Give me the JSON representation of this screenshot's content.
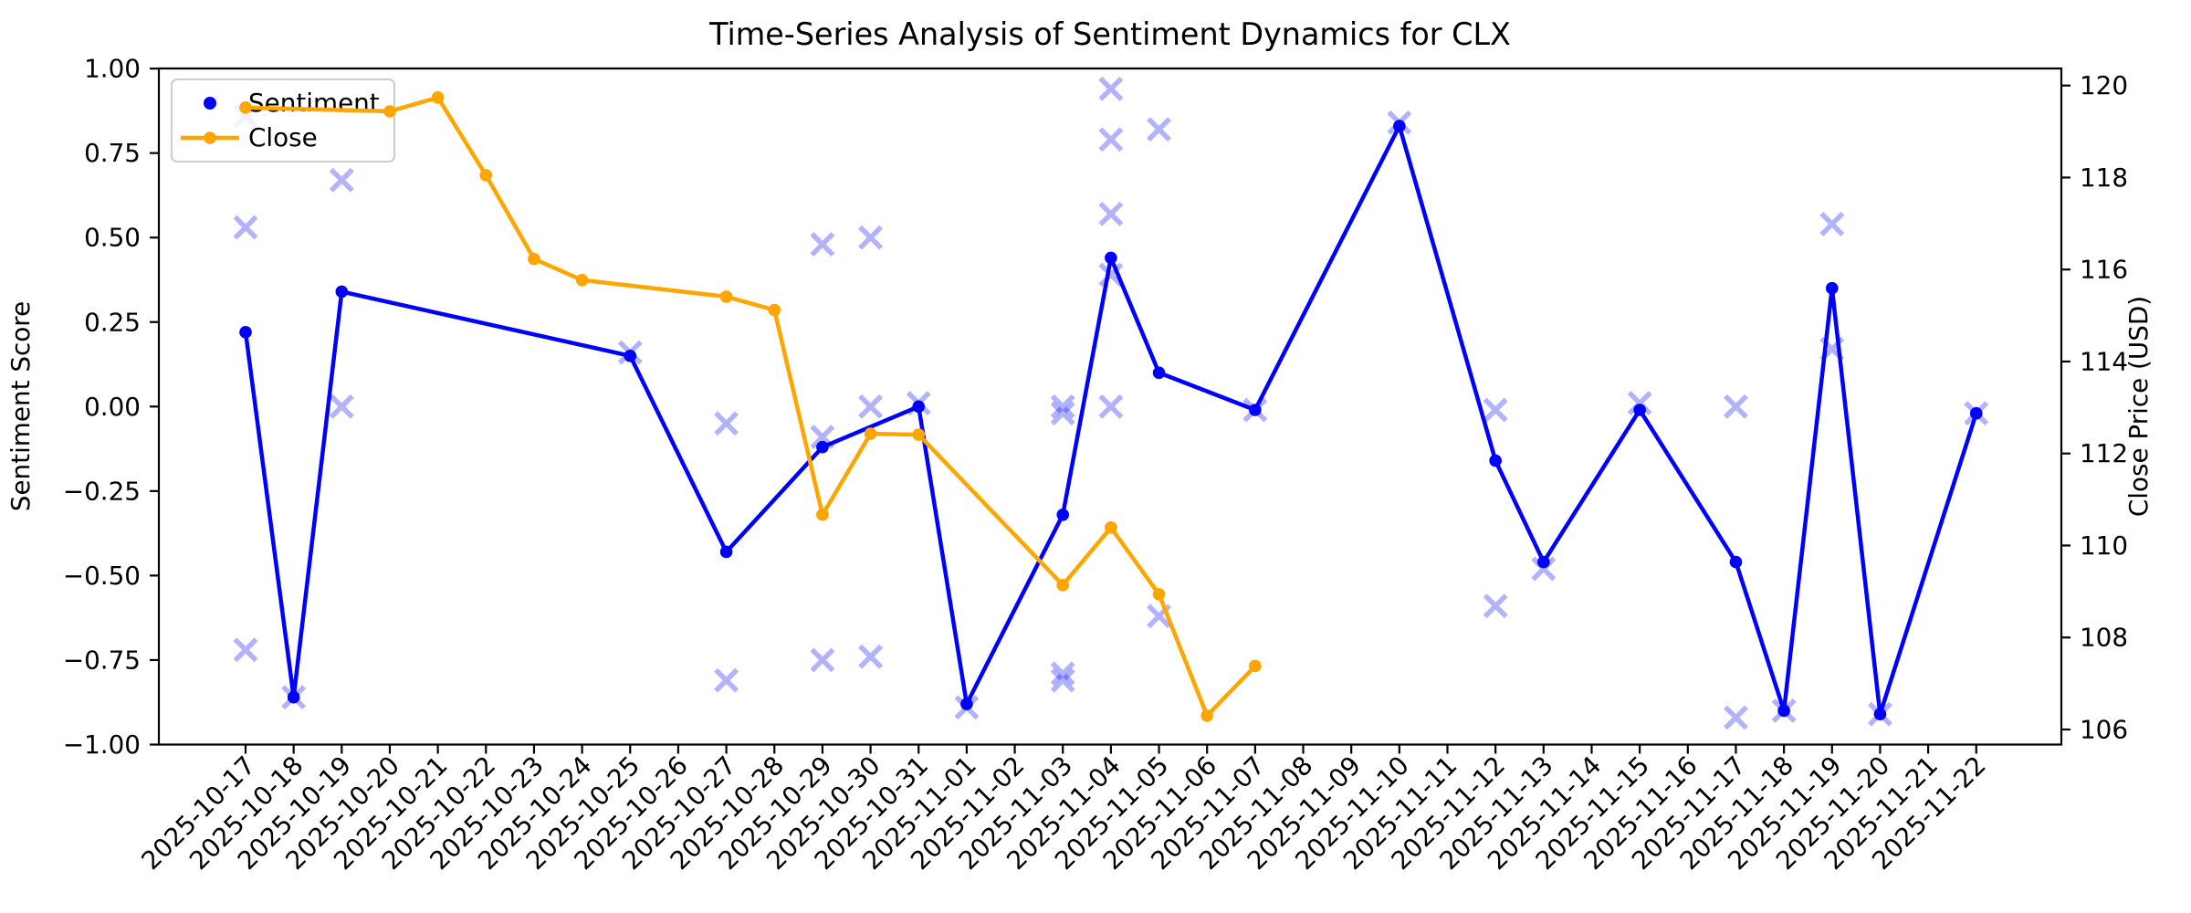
{
  "chart_data": {
    "type": "line",
    "title": "Time-Series Analysis of Sentiment Dynamics for CLX",
    "ylabel_left": "Sentiment Score",
    "ylabel_right": "Close Price (USD)",
    "legend": [
      "Sentiment",
      "Close"
    ],
    "grid": false,
    "legend_position": "upper left",
    "colors": {
      "sentiment": "#0000ff",
      "close": "#ffa500",
      "scatter_x": "rgba(0,0,255,0.3)",
      "legend_edge": "#cccccc"
    },
    "xlim_dates": [
      "2025-10-17",
      "2025-11-22"
    ],
    "ylim_left": [
      -1.0,
      1.0
    ],
    "ylim_right_ticks": [
      106,
      120
    ],
    "x_dates": [
      "2025-10-17",
      "2025-10-18",
      "2025-10-19",
      "2025-10-20",
      "2025-10-21",
      "2025-10-22",
      "2025-10-23",
      "2025-10-24",
      "2025-10-25",
      "2025-10-26",
      "2025-10-27",
      "2025-10-28",
      "2025-10-29",
      "2025-10-30",
      "2025-10-31",
      "2025-11-01",
      "2025-11-02",
      "2025-11-03",
      "2025-11-04",
      "2025-11-05",
      "2025-11-06",
      "2025-11-07",
      "2025-11-08",
      "2025-11-09",
      "2025-11-10",
      "2025-11-11",
      "2025-11-12",
      "2025-11-13",
      "2025-11-14",
      "2025-11-15",
      "2025-11-16",
      "2025-11-17",
      "2025-11-18",
      "2025-11-19",
      "2025-11-20",
      "2025-11-21",
      "2025-11-22"
    ],
    "yticks_left": [
      {
        "label": "1.00",
        "v": 1.0
      },
      {
        "label": "0.75",
        "v": 0.75
      },
      {
        "label": "0.50",
        "v": 0.5
      },
      {
        "label": "0.25",
        "v": 0.25
      },
      {
        "label": "0.00",
        "v": 0.0
      },
      {
        "label": "−0.25",
        "v": -0.25
      },
      {
        "label": "−0.50",
        "v": -0.5
      },
      {
        "label": "−0.75",
        "v": -0.75
      },
      {
        "label": "−1.00",
        "v": -1.0
      }
    ],
    "yticks_right": [
      {
        "label": "120",
        "p": 120
      },
      {
        "label": "118",
        "p": 118
      },
      {
        "label": "116",
        "p": 116
      },
      {
        "label": "114",
        "p": 114
      },
      {
        "label": "112",
        "p": 112
      },
      {
        "label": "110",
        "p": 110
      },
      {
        "label": "108",
        "p": 108
      },
      {
        "label": "106",
        "p": 106
      }
    ],
    "series": [
      {
        "name": "Sentiment",
        "axis": "left",
        "style": "line_markers",
        "points": [
          [
            "2025-10-17",
            0.22
          ],
          [
            "2025-10-18",
            -0.86
          ],
          [
            "2025-10-19",
            0.34
          ],
          [
            "2025-10-25",
            0.15
          ],
          [
            "2025-10-27",
            -0.43
          ],
          [
            "2025-10-29",
            -0.12
          ],
          [
            "2025-10-31",
            0.0
          ],
          [
            "2025-11-01",
            -0.88
          ],
          [
            "2025-11-03",
            -0.32
          ],
          [
            "2025-11-04",
            0.44
          ],
          [
            "2025-11-05",
            0.1
          ],
          [
            "2025-11-07",
            -0.01
          ],
          [
            "2025-11-10",
            0.83
          ],
          [
            "2025-11-12",
            -0.16
          ],
          [
            "2025-11-13",
            -0.46
          ],
          [
            "2025-11-15",
            -0.01
          ],
          [
            "2025-11-17",
            -0.46
          ],
          [
            "2025-11-18",
            -0.9
          ],
          [
            "2025-11-19",
            0.35
          ],
          [
            "2025-11-20",
            -0.91
          ],
          [
            "2025-11-22",
            -0.02
          ]
        ]
      },
      {
        "name": "Close",
        "axis": "right",
        "style": "line_markers",
        "points": [
          [
            "2025-10-17",
            119.52
          ],
          [
            "2025-10-20",
            119.44
          ],
          [
            "2025-10-21",
            119.74
          ],
          [
            "2025-10-22",
            118.05
          ],
          [
            "2025-10-23",
            116.23
          ],
          [
            "2025-10-24",
            115.77
          ],
          [
            "2025-10-27",
            115.41
          ],
          [
            "2025-10-28",
            115.12
          ],
          [
            "2025-10-29",
            110.67
          ],
          [
            "2025-10-30",
            112.43
          ],
          [
            "2025-10-31",
            112.41
          ],
          [
            "2025-11-03",
            109.14
          ],
          [
            "2025-11-04",
            110.39
          ],
          [
            "2025-11-05",
            108.94
          ],
          [
            "2025-11-06",
            106.3
          ],
          [
            "2025-11-07",
            107.38
          ]
        ]
      },
      {
        "name": "Sentiment individual",
        "axis": "left",
        "style": "scatter_x",
        "points": [
          [
            "2025-10-17",
            0.86
          ],
          [
            "2025-10-17",
            0.53
          ],
          [
            "2025-10-17",
            -0.72
          ],
          [
            "2025-10-18",
            -0.86
          ],
          [
            "2025-10-19",
            0.67
          ],
          [
            "2025-10-19",
            0.0
          ],
          [
            "2025-10-25",
            0.16
          ],
          [
            "2025-10-27",
            -0.05
          ],
          [
            "2025-10-27",
            -0.81
          ],
          [
            "2025-10-29",
            0.48
          ],
          [
            "2025-10-29",
            -0.09
          ],
          [
            "2025-10-29",
            -0.75
          ],
          [
            "2025-10-30",
            0.5
          ],
          [
            "2025-10-30",
            0.0
          ],
          [
            "2025-10-30",
            -0.74
          ],
          [
            "2025-10-31",
            0.01
          ],
          [
            "2025-11-01",
            -0.89
          ],
          [
            "2025-11-03",
            0.0
          ],
          [
            "2025-11-03",
            -0.02
          ],
          [
            "2025-11-03",
            -0.79
          ],
          [
            "2025-11-03",
            -0.81
          ],
          [
            "2025-11-04",
            0.94
          ],
          [
            "2025-11-04",
            0.79
          ],
          [
            "2025-11-04",
            0.57
          ],
          [
            "2025-11-04",
            0.39
          ],
          [
            "2025-11-04",
            0.0
          ],
          [
            "2025-11-05",
            0.82
          ],
          [
            "2025-11-05",
            -0.62
          ],
          [
            "2025-11-07",
            -0.01
          ],
          [
            "2025-11-10",
            0.84
          ],
          [
            "2025-11-12",
            -0.01
          ],
          [
            "2025-11-12",
            -0.59
          ],
          [
            "2025-11-13",
            -0.48
          ],
          [
            "2025-11-15",
            0.01
          ],
          [
            "2025-11-17",
            0.0
          ],
          [
            "2025-11-17",
            -0.92
          ],
          [
            "2025-11-18",
            -0.9
          ],
          [
            "2025-11-19",
            0.54
          ],
          [
            "2025-11-19",
            0.17
          ],
          [
            "2025-11-20",
            -0.91
          ],
          [
            "2025-11-22",
            -0.02
          ]
        ]
      }
    ]
  }
}
